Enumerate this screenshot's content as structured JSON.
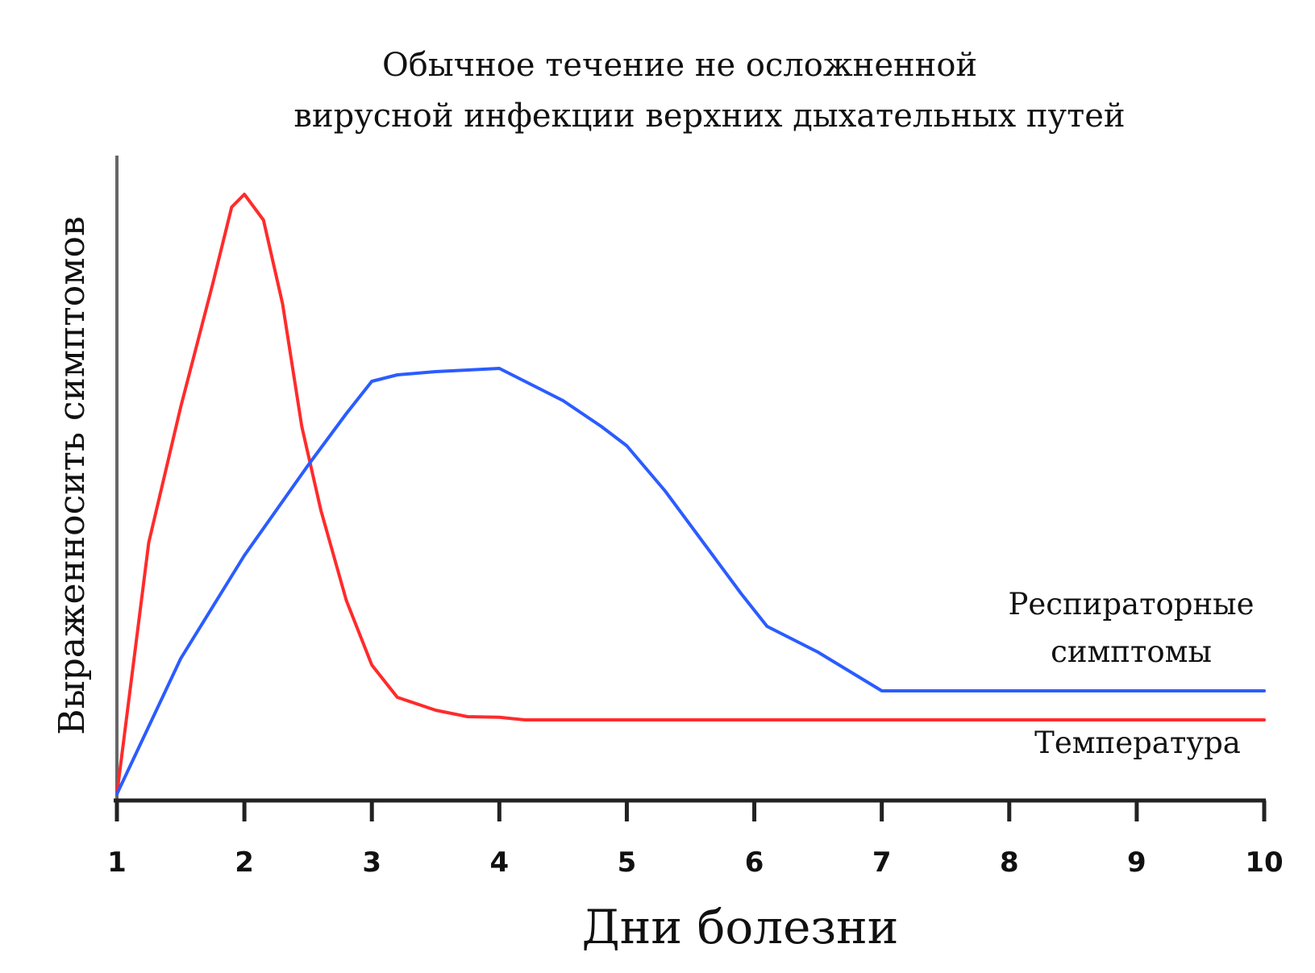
{
  "chart_data": {
    "type": "line",
    "title": [
      "Обычное течение не осложненной",
      "вирусной инфекции верхних дыхательных путей"
    ],
    "xlabel": "Дни болезни",
    "ylabel": "Выраженносить симптомов",
    "x_ticks": [
      "1",
      "2",
      "3",
      "4",
      "5",
      "6",
      "7",
      "8",
      "9",
      "10"
    ],
    "xlim": [
      1,
      10
    ],
    "ylim": [
      0,
      100
    ],
    "y_ticks_shown": false,
    "grid": false,
    "series": [
      {
        "name": "Температура",
        "color": "#ff2b2b",
        "points": [
          [
            1.0,
            1
          ],
          [
            1.25,
            40
          ],
          [
            1.5,
            61
          ],
          [
            1.75,
            80
          ],
          [
            1.9,
            92
          ],
          [
            2.0,
            94
          ],
          [
            2.15,
            90
          ],
          [
            2.3,
            77
          ],
          [
            2.45,
            58
          ],
          [
            2.6,
            45
          ],
          [
            2.8,
            31
          ],
          [
            3.0,
            21
          ],
          [
            3.2,
            16
          ],
          [
            3.5,
            14
          ],
          [
            3.75,
            13
          ],
          [
            4.0,
            12.9
          ],
          [
            4.2,
            12.5
          ],
          [
            5.0,
            12.5
          ],
          [
            6.0,
            12.5
          ],
          [
            7.0,
            12.5
          ],
          [
            8.0,
            12.5
          ],
          [
            9.0,
            12.5
          ],
          [
            10.0,
            12.5
          ]
        ]
      },
      {
        "name": "Респираторные симптомы",
        "color": "#2b5cff",
        "points": [
          [
            1.0,
            1
          ],
          [
            1.5,
            22
          ],
          [
            2.0,
            38
          ],
          [
            2.5,
            52
          ],
          [
            2.8,
            60
          ],
          [
            3.0,
            65
          ],
          [
            3.2,
            66
          ],
          [
            3.5,
            66.5
          ],
          [
            3.8,
            66.8
          ],
          [
            4.0,
            67
          ],
          [
            4.3,
            64
          ],
          [
            4.5,
            62
          ],
          [
            4.8,
            58
          ],
          [
            5.0,
            55
          ],
          [
            5.3,
            48
          ],
          [
            5.6,
            40
          ],
          [
            5.9,
            32
          ],
          [
            6.1,
            27
          ],
          [
            6.5,
            23
          ],
          [
            7.0,
            17
          ],
          [
            8.0,
            17
          ],
          [
            9.0,
            17
          ],
          [
            10.0,
            17
          ]
        ],
        "label_lines": [
          "Респираторные",
          "симптомы"
        ]
      }
    ],
    "legend_placement": "inline-right"
  }
}
